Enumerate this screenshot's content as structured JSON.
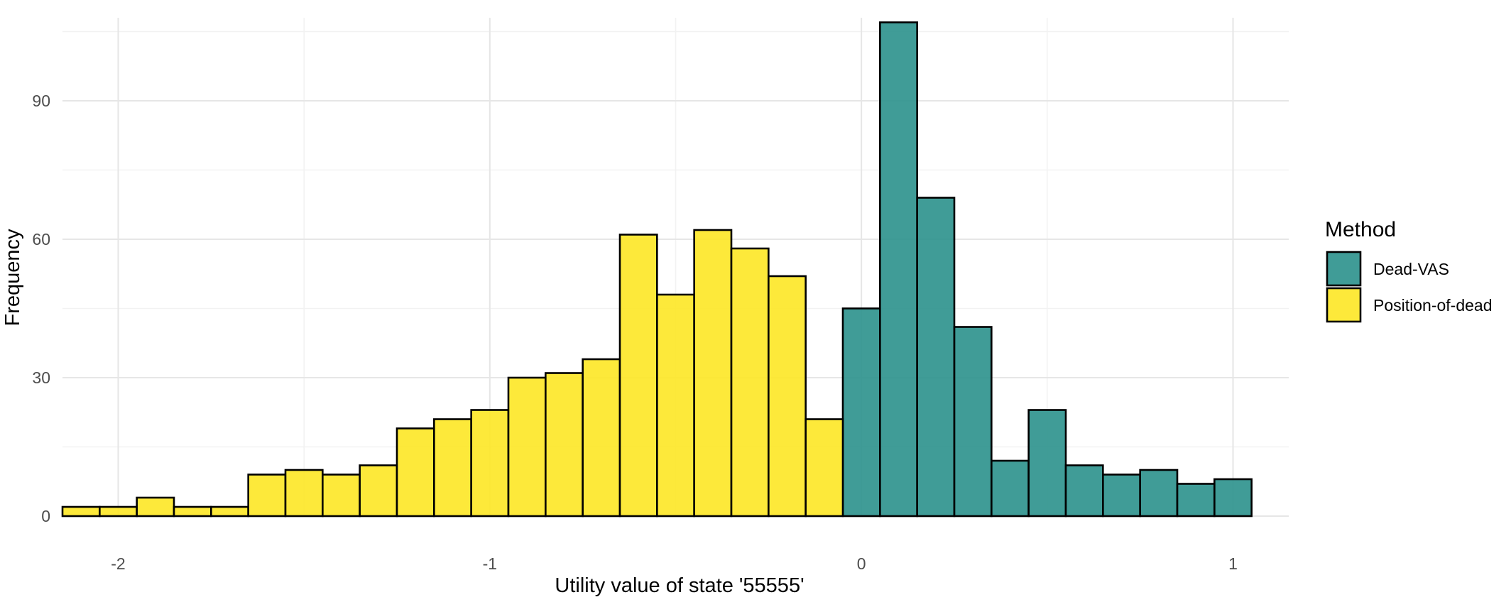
{
  "chart_data": {
    "type": "bar",
    "subtype": "histogram",
    "xlabel": "Utility value of state '55555'",
    "ylabel": "Frequency",
    "xlim": [
      -2.15,
      1.15
    ],
    "ylim": [
      0,
      108
    ],
    "x_ticks": [
      {
        "value": -2,
        "label": "-2"
      },
      {
        "value": -1,
        "label": "-1"
      },
      {
        "value": 0,
        "label": "0"
      },
      {
        "value": 1,
        "label": "1"
      }
    ],
    "y_ticks": [
      {
        "value": 0,
        "label": "0"
      },
      {
        "value": 30,
        "label": "30"
      },
      {
        "value": 60,
        "label": "60"
      },
      {
        "value": 90,
        "label": "90"
      }
    ],
    "grid": true,
    "bin_width": 0.1,
    "legend": {
      "title": "Method",
      "position": "right"
    },
    "series": [
      {
        "name": "Dead-VAS",
        "color": "#2b918c",
        "bins": [
          {
            "x": 0.0,
            "value": 45
          },
          {
            "x": 0.1,
            "value": 107
          },
          {
            "x": 0.2,
            "value": 69
          },
          {
            "x": 0.3,
            "value": 41
          },
          {
            "x": 0.4,
            "value": 12
          },
          {
            "x": 0.5,
            "value": 23
          },
          {
            "x": 0.6,
            "value": 11
          },
          {
            "x": 0.7,
            "value": 9
          },
          {
            "x": 0.8,
            "value": 10
          },
          {
            "x": 0.9,
            "value": 7
          },
          {
            "x": 1.0,
            "value": 8
          }
        ]
      },
      {
        "name": "Position-of-dead",
        "color": "#fde725",
        "bins": [
          {
            "x": -2.1,
            "value": 2
          },
          {
            "x": -2.0,
            "value": 2
          },
          {
            "x": -1.9,
            "value": 4
          },
          {
            "x": -1.8,
            "value": 2
          },
          {
            "x": -1.7,
            "value": 2
          },
          {
            "x": -1.6,
            "value": 9
          },
          {
            "x": -1.5,
            "value": 10
          },
          {
            "x": -1.4,
            "value": 9
          },
          {
            "x": -1.3,
            "value": 11
          },
          {
            "x": -1.2,
            "value": 19
          },
          {
            "x": -1.1,
            "value": 21
          },
          {
            "x": -1.0,
            "value": 23
          },
          {
            "x": -0.9,
            "value": 30
          },
          {
            "x": -0.8,
            "value": 31
          },
          {
            "x": -0.7,
            "value": 34
          },
          {
            "x": -0.6,
            "value": 61
          },
          {
            "x": -0.5,
            "value": 48
          },
          {
            "x": -0.4,
            "value": 62
          },
          {
            "x": -0.3,
            "value": 58
          },
          {
            "x": -0.2,
            "value": 52
          },
          {
            "x": -0.1,
            "value": 21
          }
        ]
      }
    ]
  }
}
